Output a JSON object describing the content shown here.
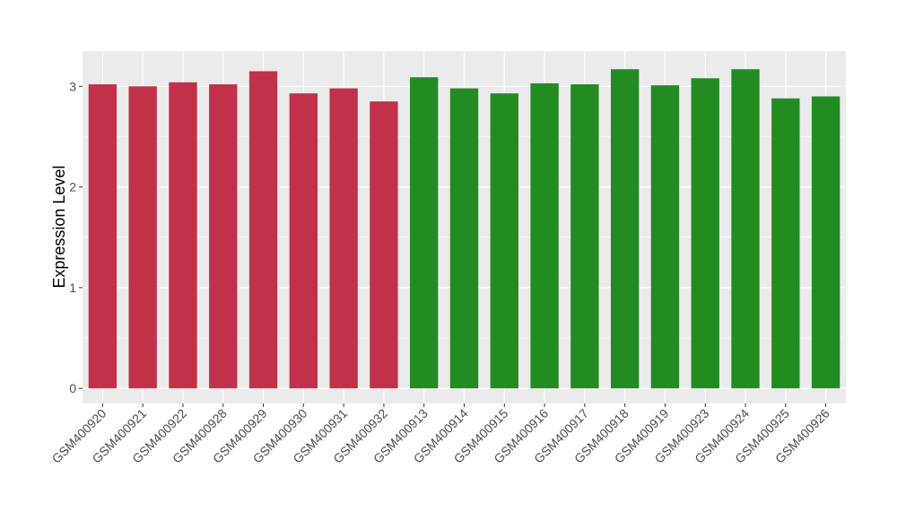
{
  "chart_data": {
    "type": "bar",
    "ylabel": "Expression Level",
    "xlabel": "",
    "ylim": [
      -0.15,
      3.35
    ],
    "yticks": [
      0,
      1,
      2,
      3
    ],
    "grid": true,
    "background": "#ebebeb",
    "colors": {
      "group_a": "#c1314a",
      "group_b": "#228b22"
    },
    "categories": [
      "GSM400920",
      "GSM400921",
      "GSM400922",
      "GSM400928",
      "GSM400929",
      "GSM400930",
      "GSM400931",
      "GSM400932",
      "GSM400913",
      "GSM400914",
      "GSM400915",
      "GSM400916",
      "GSM400917",
      "GSM400918",
      "GSM400919",
      "GSM400923",
      "GSM400924",
      "GSM400925",
      "GSM400926"
    ],
    "values": [
      3.02,
      3.0,
      3.04,
      3.02,
      3.15,
      2.93,
      2.98,
      2.85,
      3.09,
      2.98,
      2.93,
      3.03,
      3.02,
      3.17,
      3.01,
      3.08,
      3.17,
      2.88,
      2.9
    ],
    "bar_groups": [
      "group_a",
      "group_a",
      "group_a",
      "group_a",
      "group_a",
      "group_a",
      "group_a",
      "group_a",
      "group_b",
      "group_b",
      "group_b",
      "group_b",
      "group_b",
      "group_b",
      "group_b",
      "group_b",
      "group_b",
      "group_b",
      "group_b"
    ]
  }
}
